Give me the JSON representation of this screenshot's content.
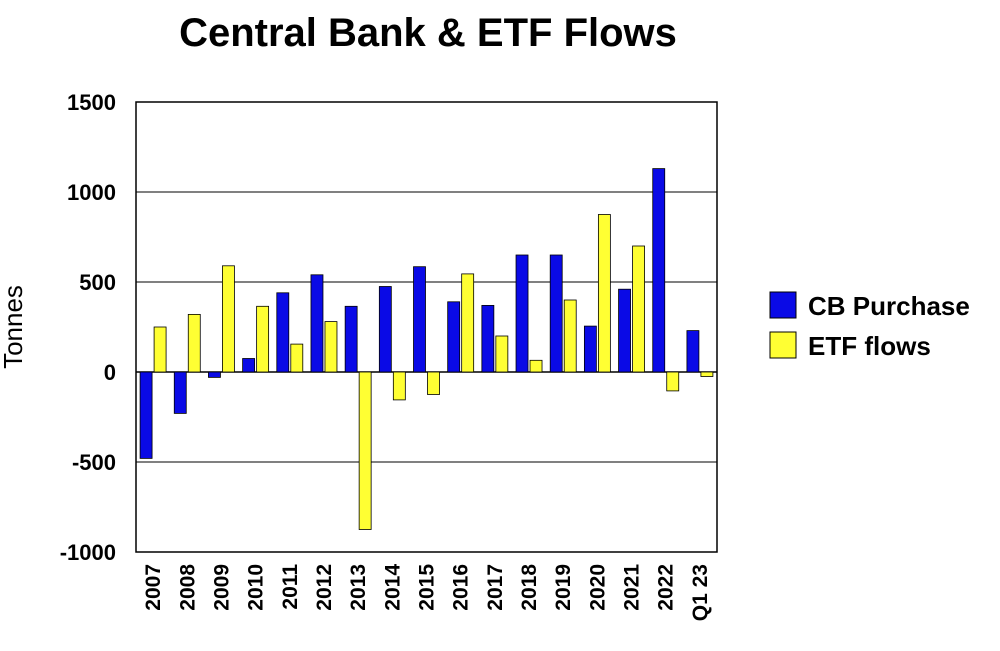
{
  "chart_data": {
    "type": "bar",
    "title": "Central Bank & ETF Flows",
    "ylabel": "Tonnes",
    "xlabel": "",
    "ylim": [
      -1000,
      1500
    ],
    "yticks": [
      1500,
      1000,
      500,
      0,
      -500,
      -1000
    ],
    "grid": true,
    "legend_position": "right",
    "categories": [
      "2007",
      "2008",
      "2009",
      "2010",
      "2011",
      "2012",
      "2013",
      "2014",
      "2015",
      "2016",
      "2017",
      "2018",
      "2019",
      "2020",
      "2021",
      "2022",
      "Q1 23"
    ],
    "series": [
      {
        "name": "CB Purchase",
        "color": "#0a0ae6",
        "values": [
          -480,
          -230,
          -30,
          75,
          440,
          540,
          365,
          475,
          585,
          390,
          370,
          650,
          650,
          255,
          460,
          1130,
          230
        ]
      },
      {
        "name": "ETF flows",
        "color": "#ffff33",
        "values": [
          250,
          320,
          590,
          365,
          155,
          280,
          -875,
          -155,
          -125,
          545,
          200,
          65,
          400,
          875,
          700,
          -105,
          -25
        ]
      }
    ]
  }
}
